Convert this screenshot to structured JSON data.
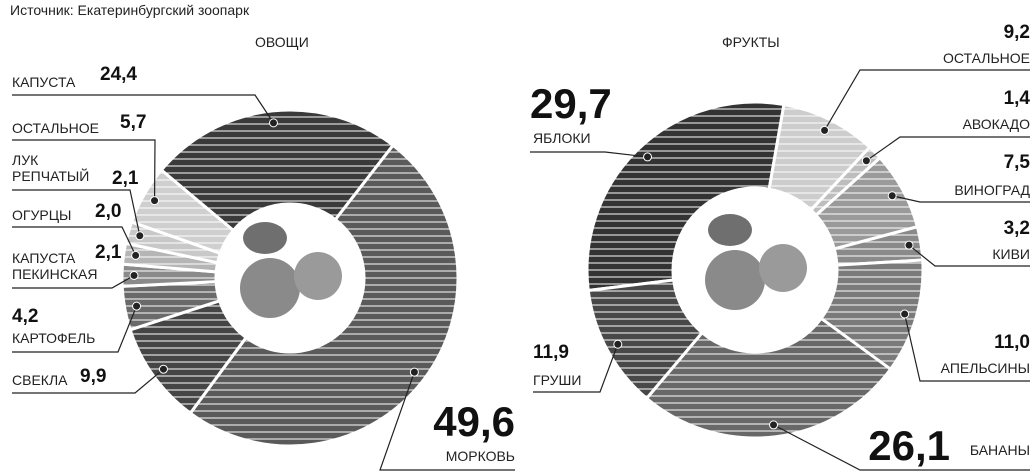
{
  "source": "Источник: Екатеринбургский зоопарк",
  "chart_data": [
    {
      "type": "pie",
      "title": "ОВОЩИ",
      "categories": [
        "КАПУСТА",
        "МОРКОВЬ",
        "СВЕКЛА",
        "КАРТОФЕЛЬ",
        "КАПУСТА\nПЕКИНСКАЯ",
        "ОГУРЦЫ",
        "ЛУК\nРЕПЧАТЫЙ",
        "ОСТАЛЬНОЕ"
      ],
      "values": [
        24.4,
        49.6,
        9.9,
        4.2,
        2.1,
        2.0,
        2.1,
        5.7
      ],
      "value_labels": [
        "24,4",
        "49,6",
        "9,9",
        "4,2",
        "2,1",
        "2,0",
        "2,1",
        "5,7"
      ],
      "colors": [
        "#3a3a3a",
        "#5a5a5a",
        "#454545",
        "#6a6a6a",
        "#8a8a8a",
        "#b5b5b5",
        "#c8c8c8",
        "#cfcfcf"
      ]
    },
    {
      "type": "pie",
      "title": "ФРУКТЫ",
      "categories": [
        "ЯБЛОКИ",
        "ОСТАЛЬНОЕ",
        "АВОКАДО",
        "ВИНОГРАД",
        "КИВИ",
        "АПЕЛЬСИНЫ",
        "БАНАНЫ",
        "ГРУШИ"
      ],
      "values": [
        29.7,
        9.2,
        1.4,
        7.5,
        3.2,
        11.0,
        26.1,
        11.9
      ],
      "value_labels": [
        "29,7",
        "9,2",
        "1,4",
        "7,5",
        "3,2",
        "11,0",
        "26,1",
        "11,9"
      ],
      "colors": [
        "#333333",
        "#cdcdcd",
        "#bdbdbd",
        "#9a9a9a",
        "#8a8a8a",
        "#7a7a7a",
        "#686868",
        "#484848"
      ]
    }
  ]
}
